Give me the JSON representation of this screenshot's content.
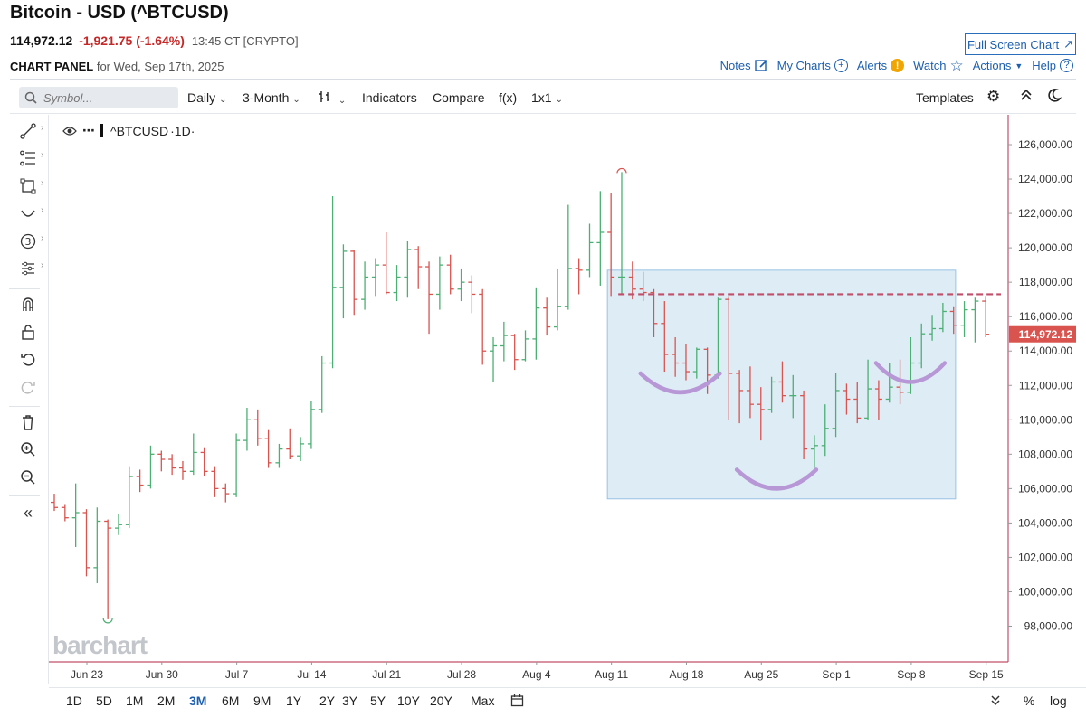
{
  "header": {
    "title": "Bitcoin - USD (^BTCUSD)",
    "last": "114,972.12",
    "change": "-1,921.75 (-1.64%)",
    "time": "13:45 CT [CRYPTO]",
    "full_screen": "Full Screen Chart",
    "panel_label": "CHART PANEL",
    "panel_date": "for Wed, Sep 17th, 2025",
    "links": {
      "notes": "Notes",
      "my_charts": "My Charts",
      "alerts": "Alerts",
      "watch": "Watch",
      "actions": "Actions",
      "help": "Help"
    }
  },
  "toolbar": {
    "search_placeholder": "Symbol...",
    "interval": "Daily",
    "period": "3-Month",
    "indicators": "Indicators",
    "compare": "Compare",
    "fx": "f(x)",
    "layout": "1x1",
    "templates": "Templates"
  },
  "legend": {
    "symbol": "^BTCUSD",
    "interval": "·1D·"
  },
  "watermark": "barchart",
  "ranges": [
    "1D",
    "5D",
    "1M",
    "2M",
    "3M",
    "6M",
    "9M",
    "1Y",
    "2Y",
    "3Y",
    "5Y",
    "10Y",
    "20Y",
    "Max"
  ],
  "active_range": "3M",
  "bottom_right": {
    "percent": "%",
    "log": "log"
  },
  "colors": {
    "up": "#4caf73",
    "down": "#d9534f",
    "accent": "#1d5fae",
    "price_tag": "#d9534f",
    "box_fill": "#dbeaf6",
    "box_stroke": "#8fbde3",
    "arc": "#b897d6",
    "resistance": "#c0506a"
  },
  "chart_data": {
    "type": "ohlc",
    "title": "^BTCUSD ·1D·",
    "x_tick_labels": [
      "Jun 23",
      "Jun 30",
      "Jul 7",
      "Jul 14",
      "Jul 21",
      "Jul 28",
      "Aug 4",
      "Aug 11",
      "Aug 18",
      "Aug 25",
      "Sep 1",
      "Sep 8",
      "Sep 15"
    ],
    "y_ticks": [
      98000,
      100000,
      102000,
      104000,
      106000,
      108000,
      110000,
      112000,
      114000,
      116000,
      118000,
      120000,
      122000,
      124000,
      126000
    ],
    "ylim": [
      96200,
      127500
    ],
    "last_price": 114972.12,
    "last_price_label": "114,972.12",
    "resistance_level": 117300,
    "highlight_box": {
      "start_index": 52,
      "end_index": 83,
      "price_low": 105400,
      "price_high": 118700
    },
    "arcs": [
      {
        "start_index": 55,
        "end_index": 62,
        "top_price": 112700,
        "bottom_price": 111600
      },
      {
        "start_index": 64,
        "end_index": 71,
        "top_price": 107100,
        "bottom_price": 106000
      },
      {
        "start_index": 77,
        "end_index": 83,
        "top_price": 113300,
        "bottom_price": 112200
      }
    ],
    "marker_high": {
      "index": 53,
      "price": 124400
    },
    "marker_low": {
      "index": 5,
      "price": 98400
    },
    "bars": [
      [
        105200,
        105700,
        104700,
        104900
      ],
      [
        104900,
        105100,
        104100,
        104300
      ],
      [
        104300,
        106300,
        102600,
        104600
      ],
      [
        104600,
        104800,
        100900,
        101400
      ],
      [
        101400,
        104900,
        100500,
        104100
      ],
      [
        104100,
        104200,
        98400,
        103700
      ],
      [
        103700,
        104500,
        103300,
        103900
      ],
      [
        103900,
        107300,
        103700,
        106700
      ],
      [
        106700,
        107100,
        105800,
        106200
      ],
      [
        106200,
        108500,
        106000,
        108000
      ],
      [
        108000,
        108200,
        107000,
        107700
      ],
      [
        107700,
        108000,
        106800,
        107200
      ],
      [
        107200,
        107600,
        106500,
        107000
      ],
      [
        107000,
        109200,
        106800,
        108100
      ],
      [
        108100,
        108400,
        106700,
        107000
      ],
      [
        107000,
        107300,
        105500,
        106000
      ],
      [
        106000,
        106300,
        105200,
        105700
      ],
      [
        105700,
        109200,
        105500,
        108800
      ],
      [
        108800,
        110700,
        108200,
        110000
      ],
      [
        110000,
        110600,
        108500,
        108900
      ],
      [
        108900,
        109400,
        107200,
        107500
      ],
      [
        107500,
        108600,
        107200,
        108300
      ],
      [
        108300,
        109500,
        107700,
        107900
      ],
      [
        107900,
        109000,
        107600,
        108600
      ],
      [
        108600,
        111100,
        108300,
        110600
      ],
      [
        110600,
        113700,
        110400,
        113300
      ],
      [
        113300,
        123000,
        113000,
        117700
      ],
      [
        117700,
        120200,
        115900,
        119800
      ],
      [
        119800,
        119900,
        116100,
        117000
      ],
      [
        117000,
        119200,
        116400,
        118300
      ],
      [
        118300,
        119400,
        117200,
        119000
      ],
      [
        119000,
        120900,
        117300,
        117400
      ],
      [
        117400,
        119000,
        116900,
        118300
      ],
      [
        118300,
        120400,
        117100,
        119900
      ],
      [
        119900,
        120100,
        117600,
        118900
      ],
      [
        118900,
        119200,
        115000,
        117300
      ],
      [
        117300,
        119500,
        116400,
        119000
      ],
      [
        119000,
        119600,
        117300,
        117600
      ],
      [
        117600,
        118800,
        116900,
        118000
      ],
      [
        118000,
        118400,
        116200,
        117300
      ],
      [
        117300,
        117600,
        113200,
        114000
      ],
      [
        114000,
        114800,
        112200,
        114300
      ],
      [
        114300,
        115700,
        113400,
        114900
      ],
      [
        114900,
        115000,
        112900,
        113500
      ],
      [
        113500,
        115200,
        113400,
        114700
      ],
      [
        114700,
        117700,
        113500,
        116500
      ],
      [
        116500,
        117100,
        114900,
        115400
      ],
      [
        115400,
        118800,
        115200,
        116600
      ],
      [
        116600,
        122500,
        116400,
        118800
      ],
      [
        118800,
        119400,
        117300,
        118700
      ],
      [
        118700,
        121400,
        118300,
        120300
      ],
      [
        120300,
        123300,
        117800,
        120900
      ],
      [
        120900,
        123200,
        117200,
        118300
      ],
      [
        118300,
        124400,
        117300,
        118300
      ],
      [
        118300,
        119200,
        117000,
        117600
      ],
      [
        117600,
        118600,
        116900,
        117400
      ],
      [
        117400,
        117600,
        114800,
        115600
      ],
      [
        115600,
        116900,
        112800,
        113800
      ],
      [
        113800,
        114800,
        112500,
        113300
      ],
      [
        113300,
        114400,
        112300,
        112800
      ],
      [
        112800,
        114200,
        112400,
        114100
      ],
      [
        114100,
        114200,
        111500,
        112600
      ],
      [
        112600,
        117100,
        112400,
        117000
      ],
      [
        117000,
        117200,
        110000,
        112700
      ],
      [
        112700,
        112900,
        109800,
        111700
      ],
      [
        111700,
        113100,
        110100,
        110900
      ],
      [
        110900,
        111900,
        108800,
        110600
      ],
      [
        110600,
        112500,
        110400,
        112200
      ],
      [
        112200,
        113400,
        111000,
        111400
      ],
      [
        111400,
        112600,
        110100,
        111400
      ],
      [
        111400,
        111700,
        107700,
        108300
      ],
      [
        108300,
        109100,
        107200,
        108500
      ],
      [
        108500,
        110900,
        107900,
        109500
      ],
      [
        109500,
        112700,
        109000,
        111700
      ],
      [
        111700,
        112100,
        110300,
        111200
      ],
      [
        111200,
        112200,
        109800,
        110100
      ],
      [
        110100,
        113500,
        110000,
        111800
      ],
      [
        111800,
        112300,
        110000,
        111200
      ],
      [
        111200,
        113300,
        111000,
        111900
      ],
      [
        111900,
        113500,
        110900,
        111600
      ],
      [
        111600,
        114800,
        111500,
        113300
      ],
      [
        113300,
        115600,
        113000,
        115000
      ],
      [
        115000,
        116100,
        114600,
        115300
      ],
      [
        115300,
        116800,
        115100,
        116300
      ],
      [
        116300,
        116600,
        115000,
        115500
      ],
      [
        115500,
        116900,
        114800,
        116400
      ],
      [
        116400,
        117100,
        114500,
        116900
      ],
      [
        116900,
        117200,
        114800,
        114972.12
      ]
    ]
  }
}
